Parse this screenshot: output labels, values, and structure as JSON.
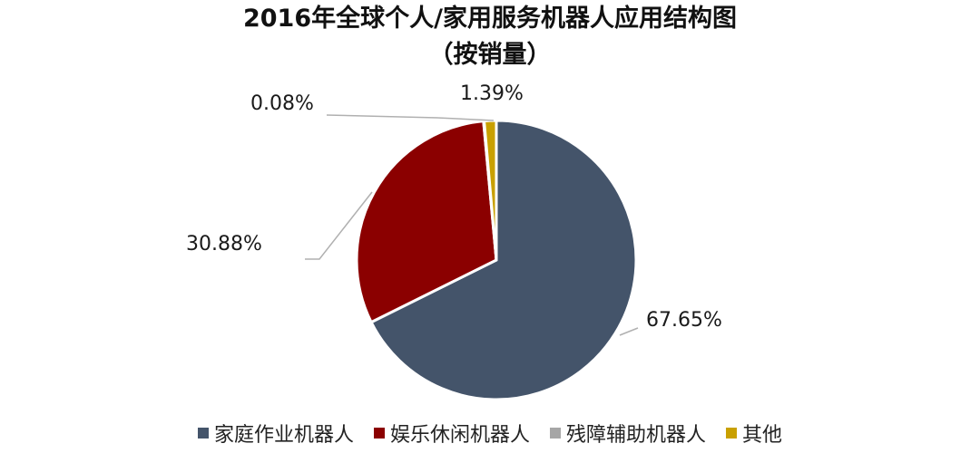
{
  "chart_data": {
    "type": "pie",
    "title_line1": "2016年全球个人/家用服务机器人应用结构图",
    "title_line2": "（按销量）",
    "slices": [
      {
        "name": "家庭作业机器人",
        "value": 67.65,
        "label": "67.65%",
        "color": "#44546A"
      },
      {
        "name": "娱乐休闲机器人",
        "value": 30.88,
        "label": "30.88%",
        "color": "#8B0000"
      },
      {
        "name": "残障辅助机器人",
        "value": 0.08,
        "label": "0.08%",
        "color": "#A6A6A6"
      },
      {
        "name": "其他",
        "value": 1.39,
        "label": "1.39%",
        "color": "#C9A000"
      }
    ],
    "start_angle_deg": 0,
    "direction": "clockwise",
    "legend_position": "bottom"
  }
}
